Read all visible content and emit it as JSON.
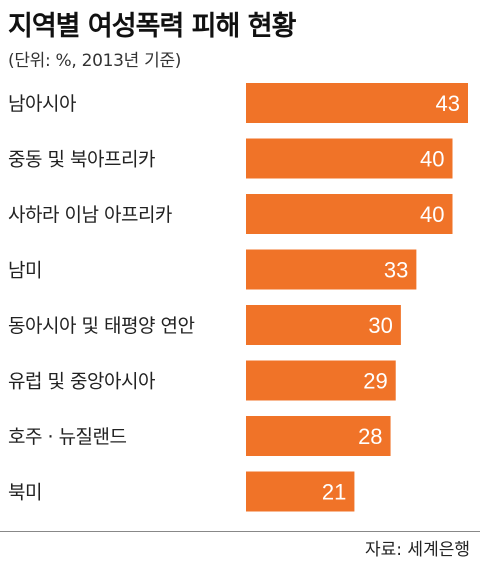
{
  "title": "지역별 여성폭력 피해 현황",
  "subtitle": "(단위: %, 2013년 기준)",
  "source": "자료: 세계은행",
  "colors": {
    "bar": "#F07328",
    "value_text": "#ffffff"
  },
  "chart_data": {
    "type": "bar",
    "orientation": "horizontal",
    "title": "지역별 여성폭력 피해 현황",
    "subtitle": "(단위: %, 2013년 기준)",
    "categories": [
      "남아시아",
      "중동 및 북아프리카",
      "사하라 이남 아프리카",
      "남미",
      "동아시아 및 태평양 연안",
      "유럽 및 중앙아시아",
      "호주 · 뉴질랜드",
      "북미"
    ],
    "values": [
      43,
      40,
      40,
      33,
      30,
      29,
      28,
      21
    ],
    "xlim": [
      0,
      43
    ],
    "grid": false,
    "legend": "none",
    "data_labels": "inside-end"
  }
}
